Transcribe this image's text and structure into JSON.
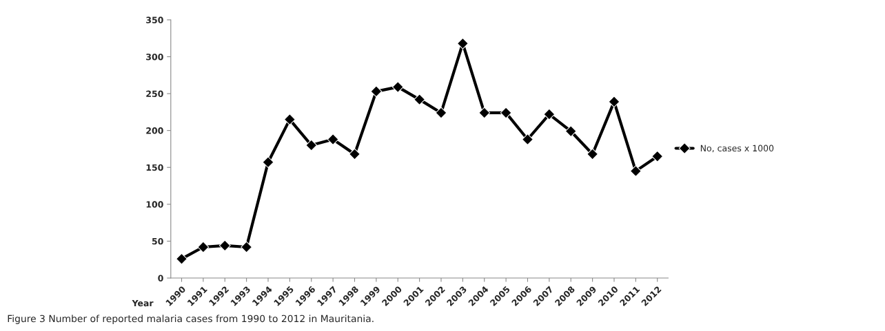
{
  "chart_data": {
    "type": "line",
    "xlabel": "Year",
    "categories": [
      "1990",
      "1991",
      "1992",
      "1993",
      "1994",
      "1995",
      "1996",
      "1997",
      "1998",
      "1999",
      "2000",
      "2001",
      "2002",
      "2003",
      "2004",
      "2005",
      "2006",
      "2007",
      "2008",
      "2009",
      "2010",
      "2011",
      "2012"
    ],
    "series": [
      {
        "name": "No, cases x 1000",
        "color": "#000000",
        "values": [
          26,
          42,
          44,
          42,
          157,
          215,
          180,
          188,
          168,
          253,
          259,
          242,
          224,
          318,
          224,
          224,
          188,
          222,
          199,
          168,
          239,
          145,
          165
        ]
      }
    ],
    "ylim": [
      0,
      350
    ],
    "yticks": [
      0,
      50,
      100,
      150,
      200,
      250,
      300,
      350
    ],
    "marker": "diamond",
    "line_style": "solid",
    "legend": "right",
    "grid": false,
    "annotations": [
      "Figure 3 Number of reported malaria cases from 1990 to 2012 in Mauritania."
    ]
  }
}
